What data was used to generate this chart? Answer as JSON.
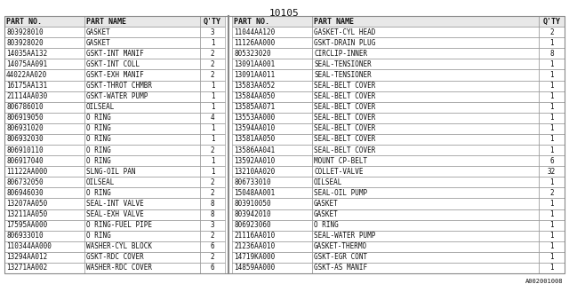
{
  "title": "10105",
  "watermark": "A002001008",
  "left_columns": [
    "PART NO.",
    "PART NAME",
    "Q'TY"
  ],
  "right_columns": [
    "PART NO.",
    "PART NAME",
    "Q'TY"
  ],
  "left_rows": [
    [
      "803928010",
      "GASKET",
      "3"
    ],
    [
      "803928020",
      "GASKET",
      "1"
    ],
    [
      "14035AA132",
      "GSKT-INT MANIF",
      "2"
    ],
    [
      "14075AA091",
      "GSKT-INT COLL",
      "2"
    ],
    [
      "44022AA020",
      "GSKT-EXH MANIF",
      "2"
    ],
    [
      "16175AA131",
      "GSKT-THROT CHMBR",
      "1"
    ],
    [
      "21114AA030",
      "GSKT-WATER PUMP",
      "1"
    ],
    [
      "806786010",
      "OILSEAL",
      "1"
    ],
    [
      "806919050",
      "O RING",
      "4"
    ],
    [
      "806931020",
      "O RING",
      "1"
    ],
    [
      "806932030",
      "O RING",
      "1"
    ],
    [
      "806910110",
      "O RING",
      "2"
    ],
    [
      "806917040",
      "O RING",
      "1"
    ],
    [
      "11122AA000",
      "SLNG-OIL PAN",
      "1"
    ],
    [
      "806732050",
      "OILSEAL",
      "2"
    ],
    [
      "806946030",
      "O RING",
      "2"
    ],
    [
      "13207AA050",
      "SEAL-INT VALVE",
      "8"
    ],
    [
      "13211AA050",
      "SEAL-EXH VALVE",
      "8"
    ],
    [
      "17595AA000",
      "O RING-FUEL PIPE",
      "3"
    ],
    [
      "806933010",
      "O RING",
      "2"
    ],
    [
      "110344AA000",
      "WASHER-CYL BLOCK",
      "6"
    ],
    [
      "13294AA012",
      "GSKT-RDC COVER",
      "2"
    ],
    [
      "13271AA002",
      "WASHER-RDC COVER",
      "6"
    ]
  ],
  "right_rows": [
    [
      "11044AA120",
      "GASKET-CYL HEAD",
      "2"
    ],
    [
      "11126AA000",
      "GSKT-DRAIN PLUG",
      "1"
    ],
    [
      "805323020",
      "CIRCLIP-INNER",
      "8"
    ],
    [
      "13091AA001",
      "SEAL-TENSIONER",
      "1"
    ],
    [
      "13091AA011",
      "SEAL-TENSIONER",
      "1"
    ],
    [
      "13583AA052",
      "SEAL-BELT COVER",
      "1"
    ],
    [
      "13584AA050",
      "SEAL-BELT COVER",
      "1"
    ],
    [
      "13585AA071",
      "SEAL-BELT COVER",
      "1"
    ],
    [
      "13553AA000",
      "SEAL-BELT COVER",
      "1"
    ],
    [
      "13594AA010",
      "SEAL-BELT COVER",
      "1"
    ],
    [
      "13581AA050",
      "SEAL-BELT COVER",
      "1"
    ],
    [
      "13586AA041",
      "SEAL-BELT COVER",
      "1"
    ],
    [
      "13592AA010",
      "MOUNT CP-BELT",
      "6"
    ],
    [
      "13210AA020",
      "COLLET-VALVE",
      "32"
    ],
    [
      "806733010",
      "OILSEAL",
      "1"
    ],
    [
      "15048AA001",
      "SEAL-OIL PUMP",
      "2"
    ],
    [
      "803910050",
      "GASKET",
      "1"
    ],
    [
      "803942010",
      "GASKET",
      "1"
    ],
    [
      "806923060",
      "O RING",
      "1"
    ],
    [
      "21116AA010",
      "SEAL-WATER PUMP",
      "1"
    ],
    [
      "21236AA010",
      "GASKET-THERMO",
      "1"
    ],
    [
      "14719KA000",
      "GSKT-EGR CONT",
      "1"
    ],
    [
      "14859AA000",
      "GSKT-AS MANIF",
      "1"
    ]
  ],
  "line_color": "#888888",
  "text_color": "#111111",
  "font_size": 5.5,
  "header_font_size": 6.0,
  "title_font_size": 8.0,
  "watermark_font_size": 5.0
}
